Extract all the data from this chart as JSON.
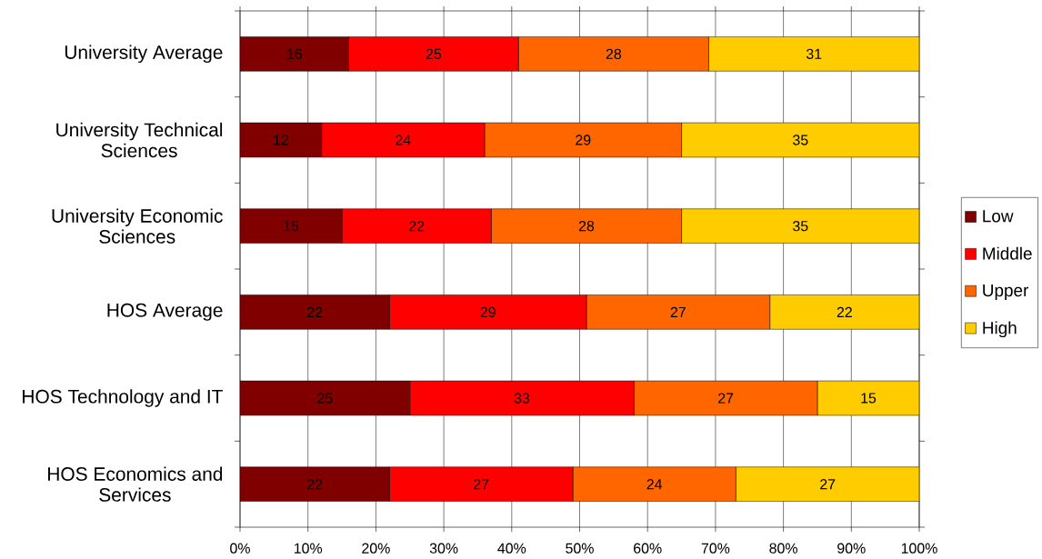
{
  "chart_data": {
    "type": "bar",
    "orientation": "horizontal",
    "stacked": true,
    "categories": [
      "University Average",
      "University Technical Sciences",
      "University Economic Sciences",
      "HOS Average",
      "HOS Technology and IT",
      "HOS Economics and Services"
    ],
    "series": [
      {
        "name": "Low",
        "color": "#800000",
        "values": [
          16,
          12,
          15,
          22,
          25,
          22
        ]
      },
      {
        "name": "Middle",
        "color": "#ff0000",
        "values": [
          25,
          24,
          22,
          29,
          33,
          27
        ]
      },
      {
        "name": "Upper",
        "color": "#ff6600",
        "values": [
          28,
          29,
          28,
          27,
          27,
          24
        ]
      },
      {
        "name": "High",
        "color": "#ffcc00",
        "values": [
          31,
          35,
          35,
          22,
          15,
          27
        ]
      }
    ],
    "xlim": [
      0,
      100
    ],
    "xticks": [
      {
        "value": 0,
        "label": "0%"
      },
      {
        "value": 10,
        "label": "10%"
      },
      {
        "value": 20,
        "label": "20%"
      },
      {
        "value": 30,
        "label": "30%"
      },
      {
        "value": 40,
        "label": "40%"
      },
      {
        "value": 50,
        "label": "50%"
      },
      {
        "value": 60,
        "label": "60%"
      },
      {
        "value": 70,
        "label": "70%"
      },
      {
        "value": 80,
        "label": "80%"
      },
      {
        "value": 90,
        "label": "90%"
      },
      {
        "value": 100,
        "label": "100%"
      }
    ],
    "grid": "x",
    "legend": "right",
    "data_labels": true
  }
}
